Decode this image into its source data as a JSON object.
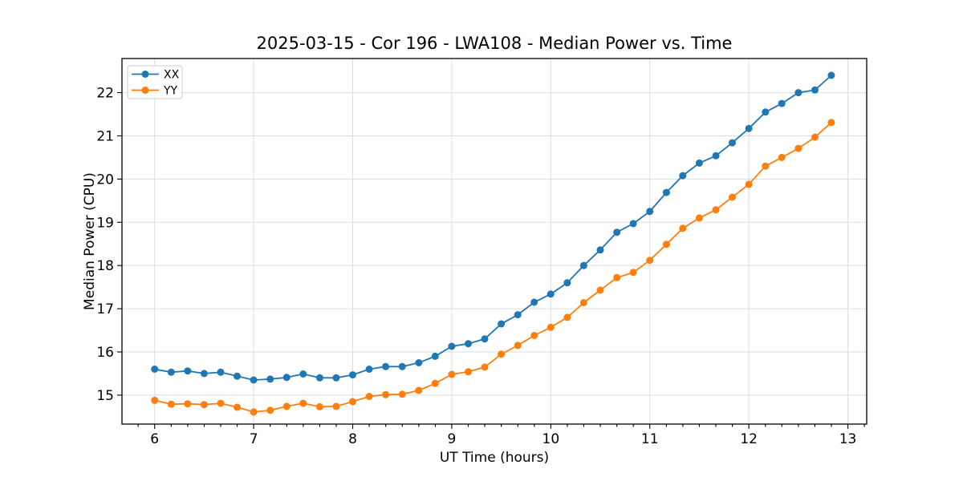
{
  "chart_data": {
    "type": "line",
    "title": "2025-03-15 - Cor 196 - LWA108 - Median Power vs. Time",
    "xlabel": "UT Time (hours)",
    "ylabel": "Median Power (CPU)",
    "x": [
      6.0,
      6.167,
      6.333,
      6.5,
      6.667,
      6.833,
      7.0,
      7.167,
      7.333,
      7.5,
      7.667,
      7.833,
      8.0,
      8.167,
      8.333,
      8.5,
      8.667,
      8.833,
      9.0,
      9.167,
      9.333,
      9.5,
      9.667,
      9.833,
      10.0,
      10.167,
      10.333,
      10.5,
      10.667,
      10.833,
      11.0,
      11.167,
      11.333,
      11.5,
      11.667,
      11.833,
      12.0,
      12.167,
      12.333,
      12.5,
      12.667,
      12.833
    ],
    "series": [
      {
        "name": "XX",
        "color": "#1f77b4",
        "values": [
          15.6,
          15.53,
          15.56,
          15.5,
          15.53,
          15.44,
          15.35,
          15.37,
          15.41,
          15.49,
          15.4,
          15.4,
          15.47,
          15.6,
          15.66,
          15.66,
          15.75,
          15.9,
          16.13,
          16.19,
          16.3,
          16.65,
          16.86,
          17.15,
          17.34,
          17.6,
          18.0,
          18.36,
          18.77,
          18.97,
          19.25,
          19.69,
          20.08,
          20.37,
          20.54,
          20.84,
          21.17,
          21.55,
          21.75,
          22.0,
          22.06,
          22.4
        ]
      },
      {
        "name": "YY",
        "color": "#ff7f0e",
        "values": [
          14.88,
          14.79,
          14.8,
          14.78,
          14.81,
          14.72,
          14.61,
          14.65,
          14.74,
          14.81,
          14.73,
          14.74,
          14.85,
          14.97,
          15.01,
          15.02,
          15.11,
          15.27,
          15.48,
          15.54,
          15.65,
          15.95,
          16.15,
          16.38,
          16.57,
          16.8,
          17.14,
          17.43,
          17.72,
          17.84,
          18.12,
          18.49,
          18.86,
          19.1,
          19.29,
          19.58,
          19.88,
          20.3,
          20.5,
          20.71,
          20.97,
          21.31
        ]
      }
    ],
    "xlim": [
      5.67,
      13.19
    ],
    "ylim": [
      14.33,
      22.79
    ],
    "x_ticks": [
      6,
      7,
      8,
      9,
      10,
      11,
      12,
      13
    ],
    "y_ticks": [
      15,
      16,
      17,
      18,
      19,
      20,
      21,
      22
    ],
    "x_minor_step": 0.16667,
    "grid": true,
    "legend_position": "upper left",
    "colors": {
      "grid": "#dddddd",
      "spine": "#000000",
      "background": "#ffffff",
      "text": "#000000",
      "legend_border": "#cccccc"
    }
  }
}
